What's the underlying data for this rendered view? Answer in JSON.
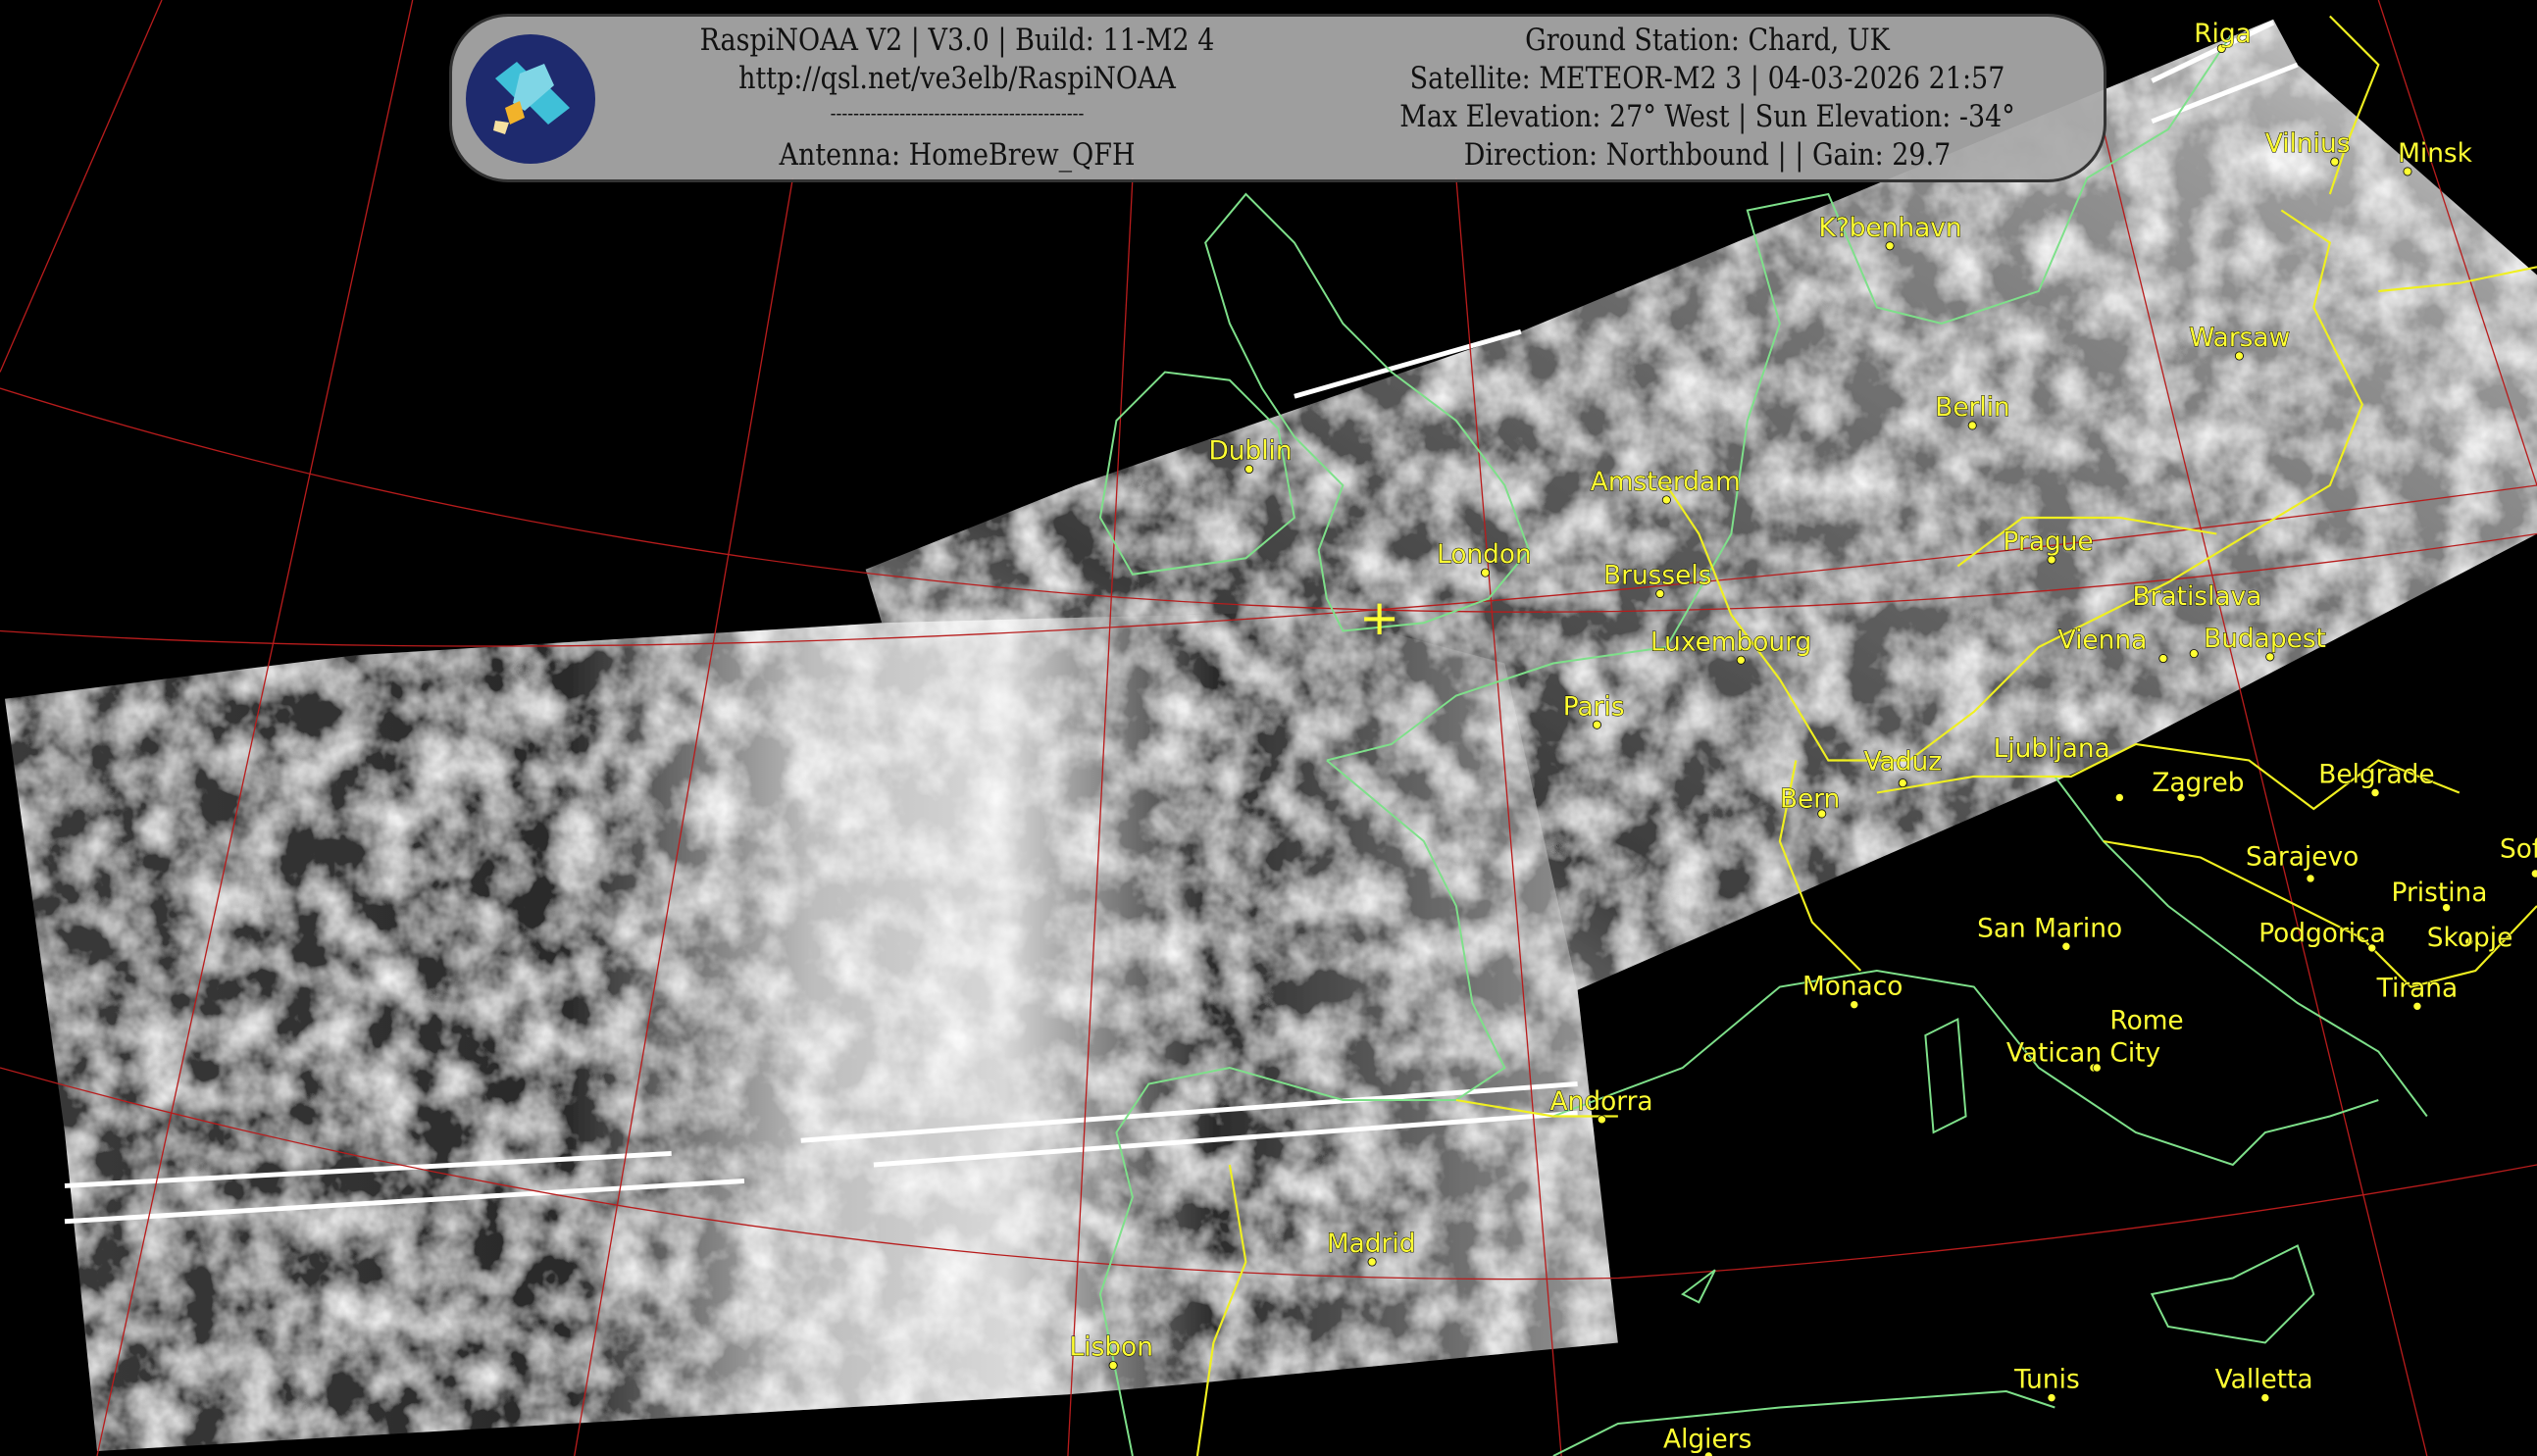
{
  "header": {
    "left_lines": [
      "RaspiNOAA V2 | V3.0 | Build: 11-M2 4",
      "http://qsl.net/ve3elb/RaspiNOAA",
      "--------------------------------------------",
      "Antenna: HomeBrew_QFH"
    ],
    "right_lines": [
      "Ground Station: Chard, UK",
      "Satellite: METEOR-M2 3 | 04-03-2026 21:57",
      "Max Elevation: 27° West | Sun Elevation: -34°",
      "Direction: Northbound | | Gain: 29.7"
    ],
    "logo_icon": "satellite-icon"
  },
  "map": {
    "ground_station_marker": "+",
    "colors": {
      "borders": "#f0f020",
      "coastlines": "#7ee08a",
      "graticule": "#b81c1c",
      "labels": "#ffff33"
    },
    "cities": [
      "Riga",
      "Vilnius",
      "Minsk",
      "K?benhavn",
      "Warsaw",
      "Berlin",
      "Dublin",
      "Amsterdam",
      "London",
      "Brussels",
      "Prague",
      "Luxembourg",
      "Bratislava",
      "Vienna",
      "Budapest",
      "Paris",
      "Vaduz",
      "Bern",
      "Ljubljana",
      "Zagreb",
      "Belgrade",
      "Sarajevo",
      "Pristina",
      "Sof",
      "San Marino",
      "Podgorica",
      "Skopje",
      "Monaco",
      "Tirana",
      "Vatican City",
      "Rome",
      "Andorra",
      "Madrid",
      "Lisbon",
      "Tunis",
      "Valletta",
      "Algiers"
    ]
  }
}
